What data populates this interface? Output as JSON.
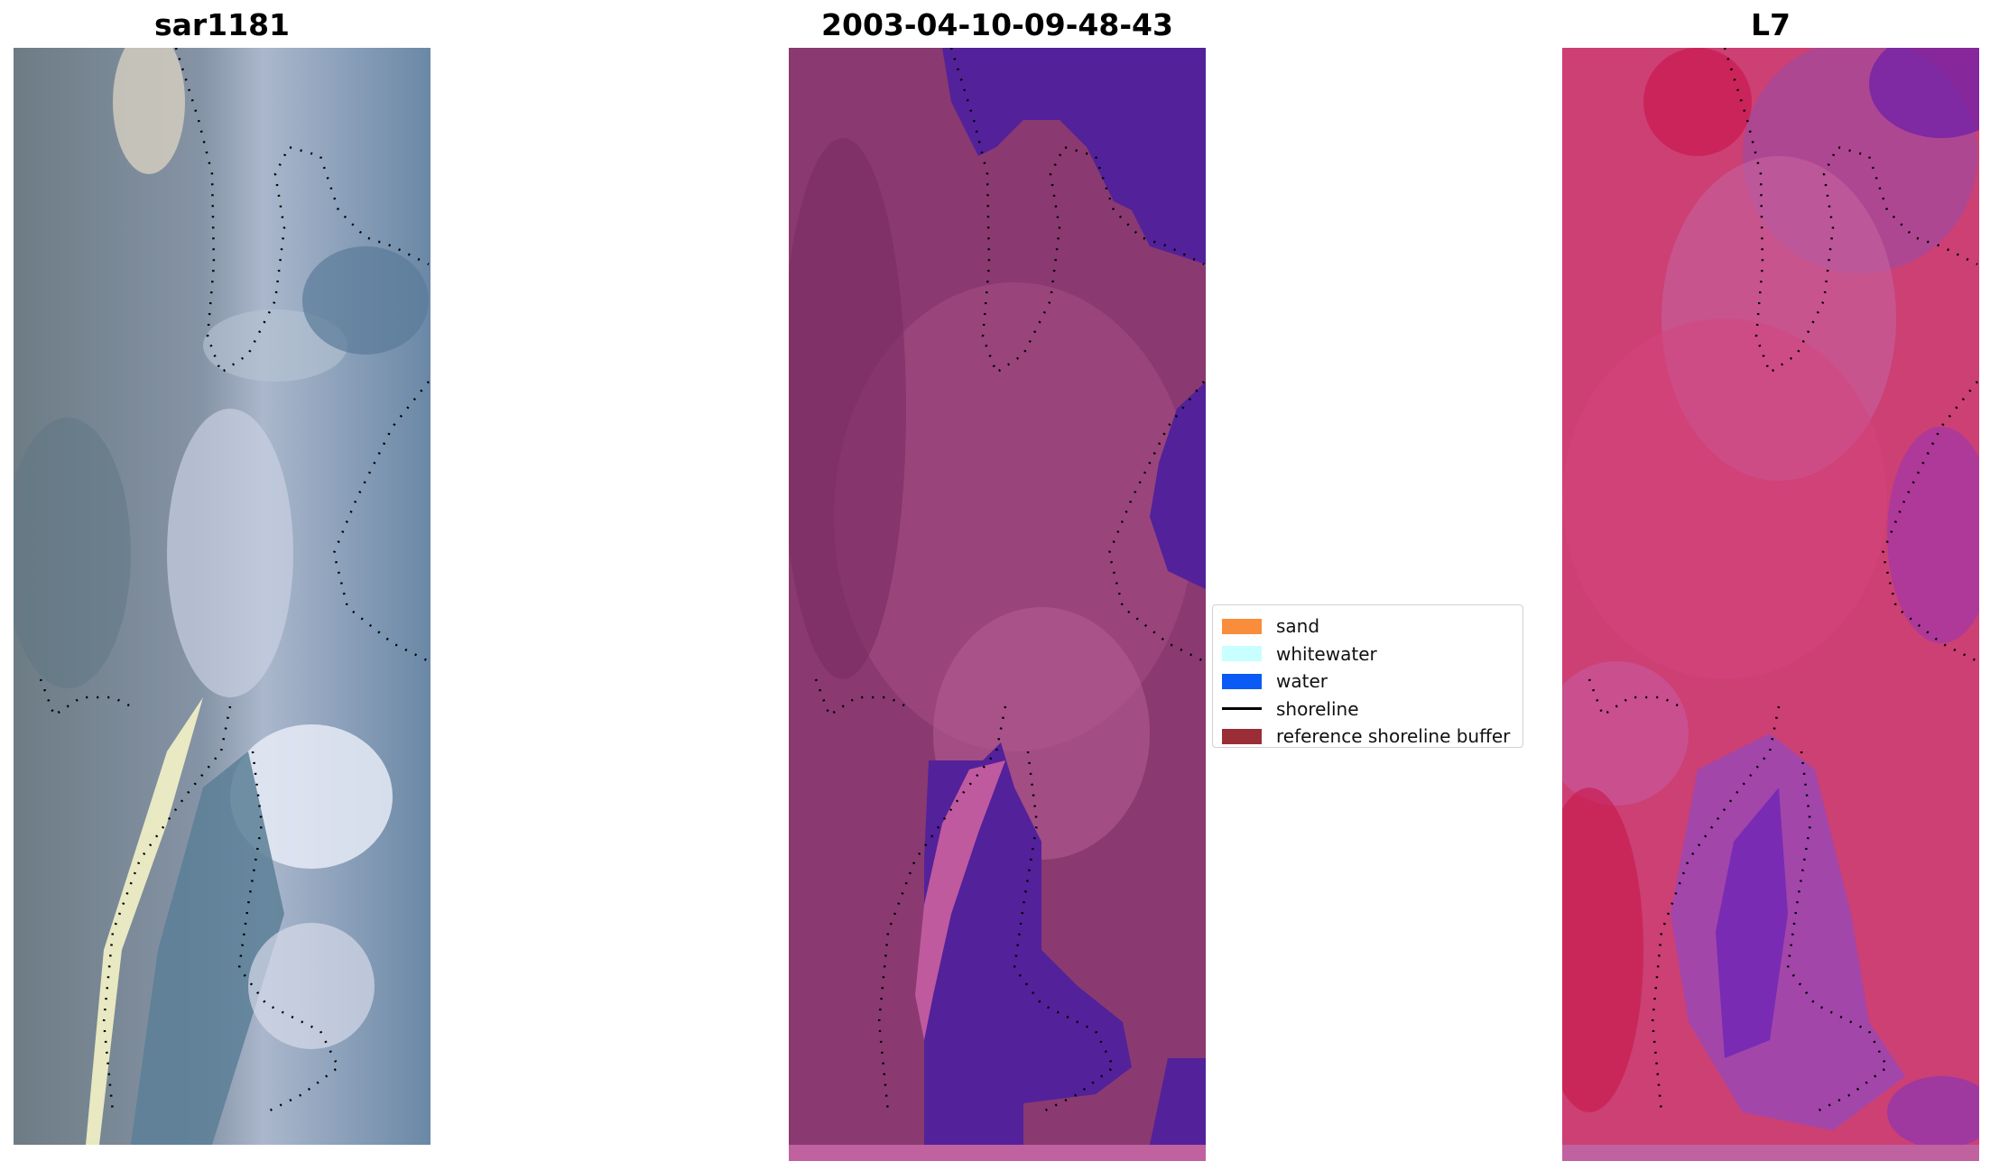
{
  "panels": [
    {
      "id": "rgb",
      "title": "sar1181"
    },
    {
      "id": "classified",
      "title": "2003-04-10-09-48-43"
    },
    {
      "id": "index",
      "title": "L7"
    }
  ],
  "legend": {
    "items": [
      {
        "label": "sand",
        "color": "#f98d3b",
        "kind": "patch"
      },
      {
        "label": "whitewater",
        "color": "#c8ffff",
        "kind": "patch"
      },
      {
        "label": "water",
        "color": "#0a5af5",
        "kind": "patch"
      },
      {
        "label": "shoreline",
        "color": "#000000",
        "kind": "line"
      },
      {
        "label": "reference shoreline buffer",
        "color": "#9a2d36",
        "kind": "patch"
      }
    ]
  },
  "colors": {
    "rgb_base": "#6e7f8a",
    "rgb_bright": "#c9d3e4",
    "class_land": "#8a3a70",
    "class_water": "#53219a",
    "class_light": "#c05a9e",
    "index_red": "#d0305e",
    "index_pink": "#c96aa4",
    "index_purple": "#7a2cb0"
  }
}
